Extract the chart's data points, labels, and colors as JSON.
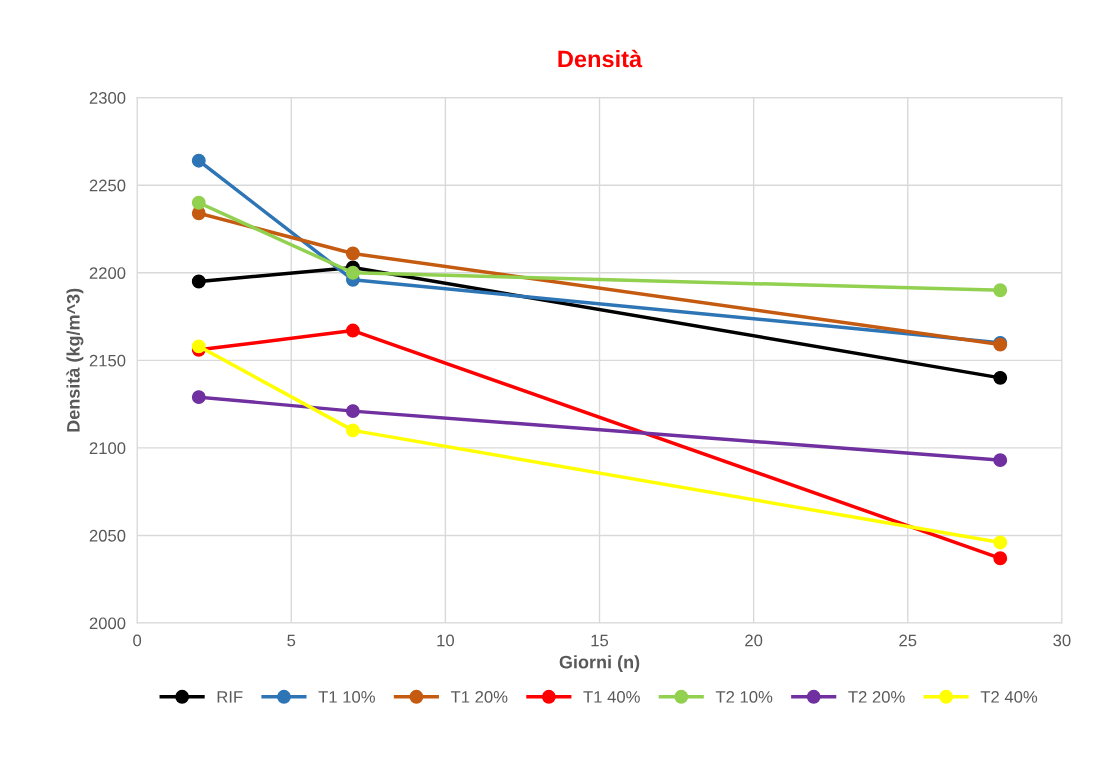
{
  "chart_data": {
    "type": "line",
    "title": "Densità",
    "xlabel": "Giorni (n)",
    "ylabel": "Densità (kg/m^3)",
    "x": [
      2,
      7,
      28
    ],
    "series": [
      {
        "name": "RIF",
        "color": "#000000",
        "values": [
          2195,
          2203,
          2140
        ]
      },
      {
        "name": "T1 10%",
        "color": "#2e75b6",
        "values": [
          2264,
          2196,
          2160
        ]
      },
      {
        "name": "T1 20%",
        "color": "#c55a11",
        "values": [
          2234,
          2211,
          2159
        ]
      },
      {
        "name": "T1 40%",
        "color": "#ff0000",
        "values": [
          2156,
          2167,
          2037
        ]
      },
      {
        "name": "T2 10%",
        "color": "#92d050",
        "values": [
          2240,
          2200,
          2190
        ]
      },
      {
        "name": "T2 20%",
        "color": "#7030a0",
        "values": [
          2129,
          2121,
          2093
        ]
      },
      {
        "name": "T2 40%",
        "color": "#ffff00",
        "values": [
          2158,
          2110,
          2046
        ]
      }
    ],
    "xlim": [
      0,
      30
    ],
    "xticks": [
      0,
      5,
      10,
      15,
      20,
      25,
      30
    ],
    "ylim": [
      2000,
      2300
    ],
    "yticks": [
      2000,
      2050,
      2100,
      2150,
      2200,
      2250,
      2300
    ],
    "grid": true,
    "legend": "bottom",
    "marker": "circle",
    "line_style": "solid"
  }
}
